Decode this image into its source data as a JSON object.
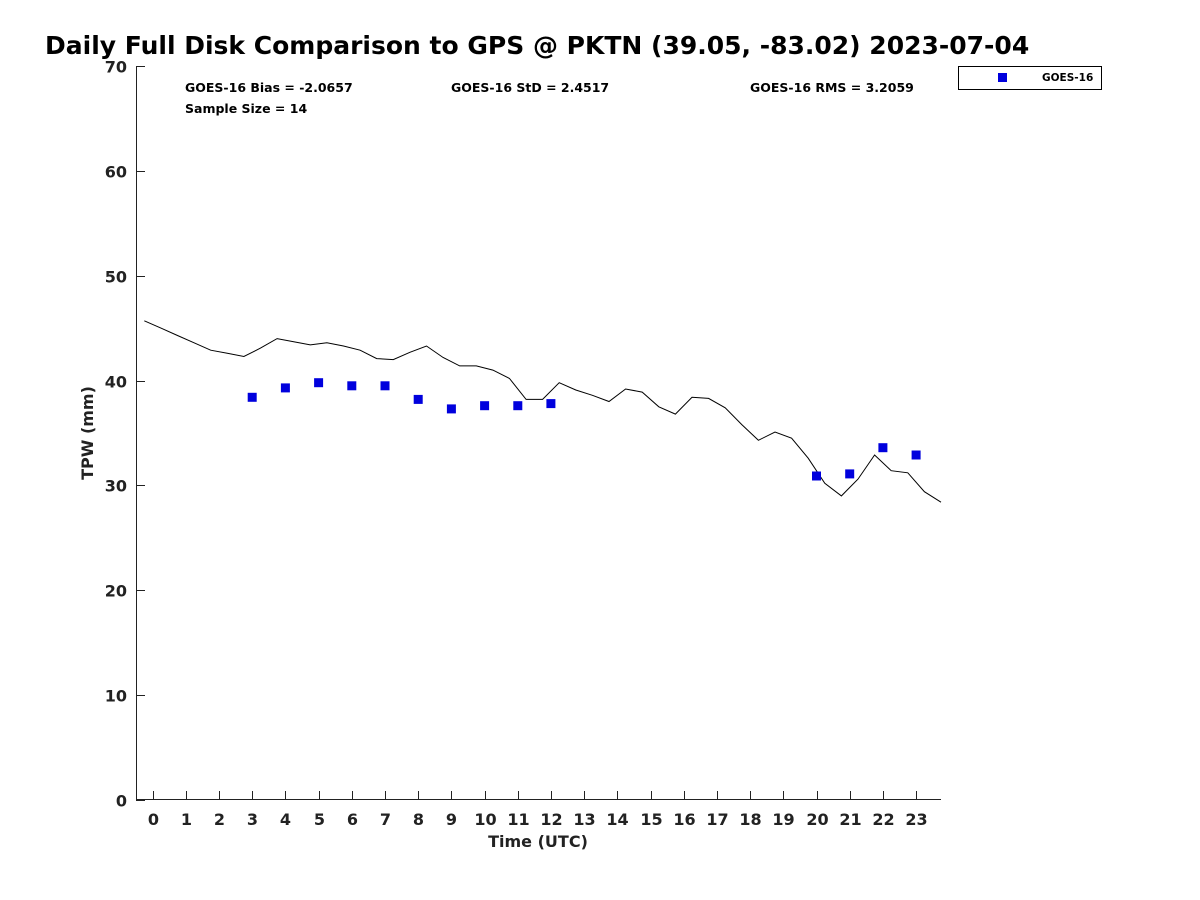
{
  "chart_data": {
    "type": "scatter",
    "title": "Daily Full Disk Comparison to GPS @ PKTN (39.05, -83.02) 2023-07-04",
    "xlabel": "Time (UTC)",
    "ylabel": "TPW (mm)",
    "xlim": [
      -0.5,
      23.75
    ],
    "ylim": [
      0,
      70
    ],
    "x_ticks": [
      "0",
      "1",
      "2",
      "3",
      "4",
      "5",
      "6",
      "7",
      "8",
      "9",
      "10",
      "11",
      "12",
      "13",
      "14",
      "15",
      "16",
      "17",
      "18",
      "19",
      "20",
      "21",
      "22",
      "23"
    ],
    "y_ticks": [
      "0",
      "10",
      "20",
      "30",
      "40",
      "50",
      "60",
      "70"
    ],
    "grid": false,
    "legend_position": "top-right",
    "stats": {
      "bias": "GOES-16 Bias = -2.0657",
      "std": "GOES-16 StD = 2.4517",
      "rms": "GOES-16 RMS = 3.2059",
      "sample": "Sample Size = 14"
    },
    "series": [
      {
        "name": "GOES-16",
        "kind": "scatter",
        "color": "#0000dd",
        "x": [
          3,
          4,
          5,
          6,
          7,
          8,
          9,
          10,
          11,
          12,
          20,
          21,
          22,
          23
        ],
        "y": [
          38.4,
          39.3,
          39.8,
          39.5,
          39.5,
          38.2,
          37.3,
          37.6,
          37.6,
          37.8,
          30.9,
          31.1,
          33.6,
          32.9
        ]
      },
      {
        "kind": "line",
        "color": "#000000",
        "x": [
          -0.25,
          0.25,
          0.75,
          1.25,
          1.75,
          2.25,
          2.75,
          3.25,
          3.75,
          4.25,
          4.75,
          5.25,
          5.75,
          6.25,
          6.75,
          7.25,
          7.75,
          8.25,
          8.75,
          9.25,
          9.75,
          10.25,
          10.75,
          11.25,
          11.75,
          12.25,
          12.75,
          13.25,
          13.75,
          14.25,
          14.75,
          15.25,
          15.75,
          16.25,
          16.75,
          17.25,
          17.75,
          18.25,
          18.75,
          19.25,
          19.75,
          20.25,
          20.75,
          21.25,
          21.75,
          22.25,
          22.75,
          23.25,
          23.75
        ],
        "y": [
          45.7,
          45.0,
          44.3,
          43.6,
          42.9,
          42.6,
          42.3,
          43.1,
          44.0,
          43.7,
          43.4,
          43.6,
          43.3,
          42.9,
          42.1,
          42.0,
          42.7,
          43.3,
          42.2,
          41.4,
          41.4,
          41.0,
          40.2,
          38.2,
          38.2,
          39.8,
          39.1,
          38.6,
          38.0,
          39.2,
          38.9,
          37.5,
          36.8,
          38.4,
          38.3,
          37.4,
          35.8,
          34.3,
          35.1,
          34.5,
          32.6,
          30.2,
          29.0,
          30.6,
          32.9,
          31.4,
          31.2,
          29.4,
          28.4
        ]
      }
    ]
  }
}
